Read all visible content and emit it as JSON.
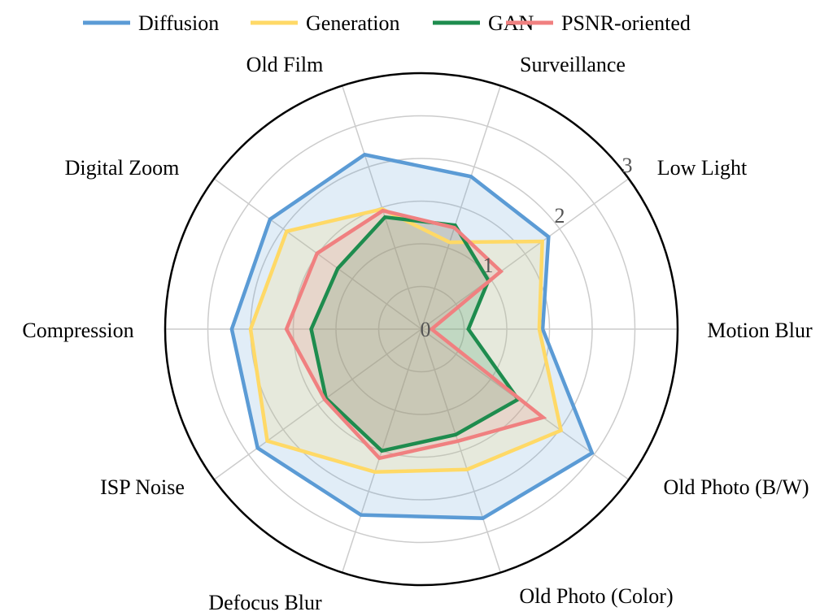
{
  "chart_data": {
    "type": "radar",
    "categories": [
      "Motion Blur",
      "Low Light",
      "Surveillance",
      "Old Film",
      "Digital Zoom",
      "Compression",
      "ISP Noise",
      "Defocus Blur",
      "Old Photo (Color)",
      "Old Photo (B/W)"
    ],
    "series": [
      {
        "name": "Diffusion",
        "color": "#5B9BD5",
        "values": [
          1.42,
          1.84,
          1.88,
          2.15,
          2.19,
          2.22,
          2.37,
          2.29,
          2.33,
          2.47
        ]
      },
      {
        "name": "Generation",
        "color": "#FFD966",
        "values": [
          1.38,
          1.75,
          1.07,
          1.48,
          1.95,
          2.0,
          2.23,
          1.76,
          1.73,
          2.02
        ]
      },
      {
        "name": "GAN",
        "color": "#1E8C4E",
        "values": [
          0.55,
          0.97,
          1.28,
          1.38,
          1.21,
          1.29,
          1.38,
          1.5,
          1.3,
          1.4
        ]
      },
      {
        "name": "PSNR-oriented",
        "color": "#F08080",
        "values": [
          0.12,
          1.15,
          1.25,
          1.46,
          1.51,
          1.58,
          1.4,
          1.59,
          1.38,
          1.76
        ]
      }
    ],
    "rlim": [
      0,
      3
    ],
    "rticks": [
      "0",
      "1",
      "2",
      "3"
    ],
    "grid": true,
    "legend": "top"
  }
}
